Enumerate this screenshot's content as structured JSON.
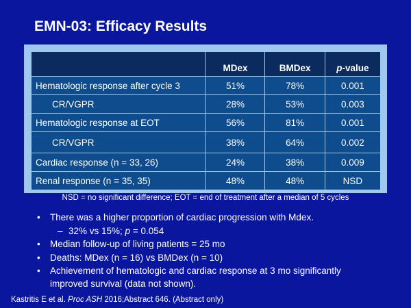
{
  "title": "EMN-03: Efficacy Results",
  "table": {
    "headers": [
      "",
      "MDex",
      "BMDex",
      "p",
      "-value"
    ],
    "rows": [
      [
        "Hematologic response after cycle 3",
        "51%",
        "78%",
        "0.001"
      ],
      [
        "CR/VGPR",
        "28%",
        "53%",
        "0.003"
      ],
      [
        "Hematologic response at EOT",
        "56%",
        "81%",
        "0.001"
      ],
      [
        "CR/VGPR",
        "38%",
        "64%",
        "0.002"
      ],
      [
        "Cardiac response (n = 33, 26)",
        "24%",
        "38%",
        "0.009"
      ],
      [
        "Renal response (n = 35, 35)",
        "48%",
        "48%",
        "NSD"
      ]
    ]
  },
  "footnote": "NSD = no significant difference; EOT = end of treatment after a median of 5 cycles",
  "bullets": {
    "b1": "There was a higher proportion of cardiac progression with Mdex.",
    "b1_sub_a": "32% vs 15%; ",
    "b1_sub_p": "p",
    "b1_sub_b": " = 0.054",
    "b2": "Median follow-up of living patients = 25 mo",
    "b3": "Deaths: MDex (n = 16) vs BMDex (n = 10)",
    "b4_l1": "Achievement of hematologic and cardiac response at 3 mo significantly",
    "b4_l2": "improved survival (data not shown)."
  },
  "citation": {
    "a": "Kastritis E et al. ",
    "b": "Proc ASH",
    "c": " 2016;Abstract 646. (Abstract only)"
  }
}
